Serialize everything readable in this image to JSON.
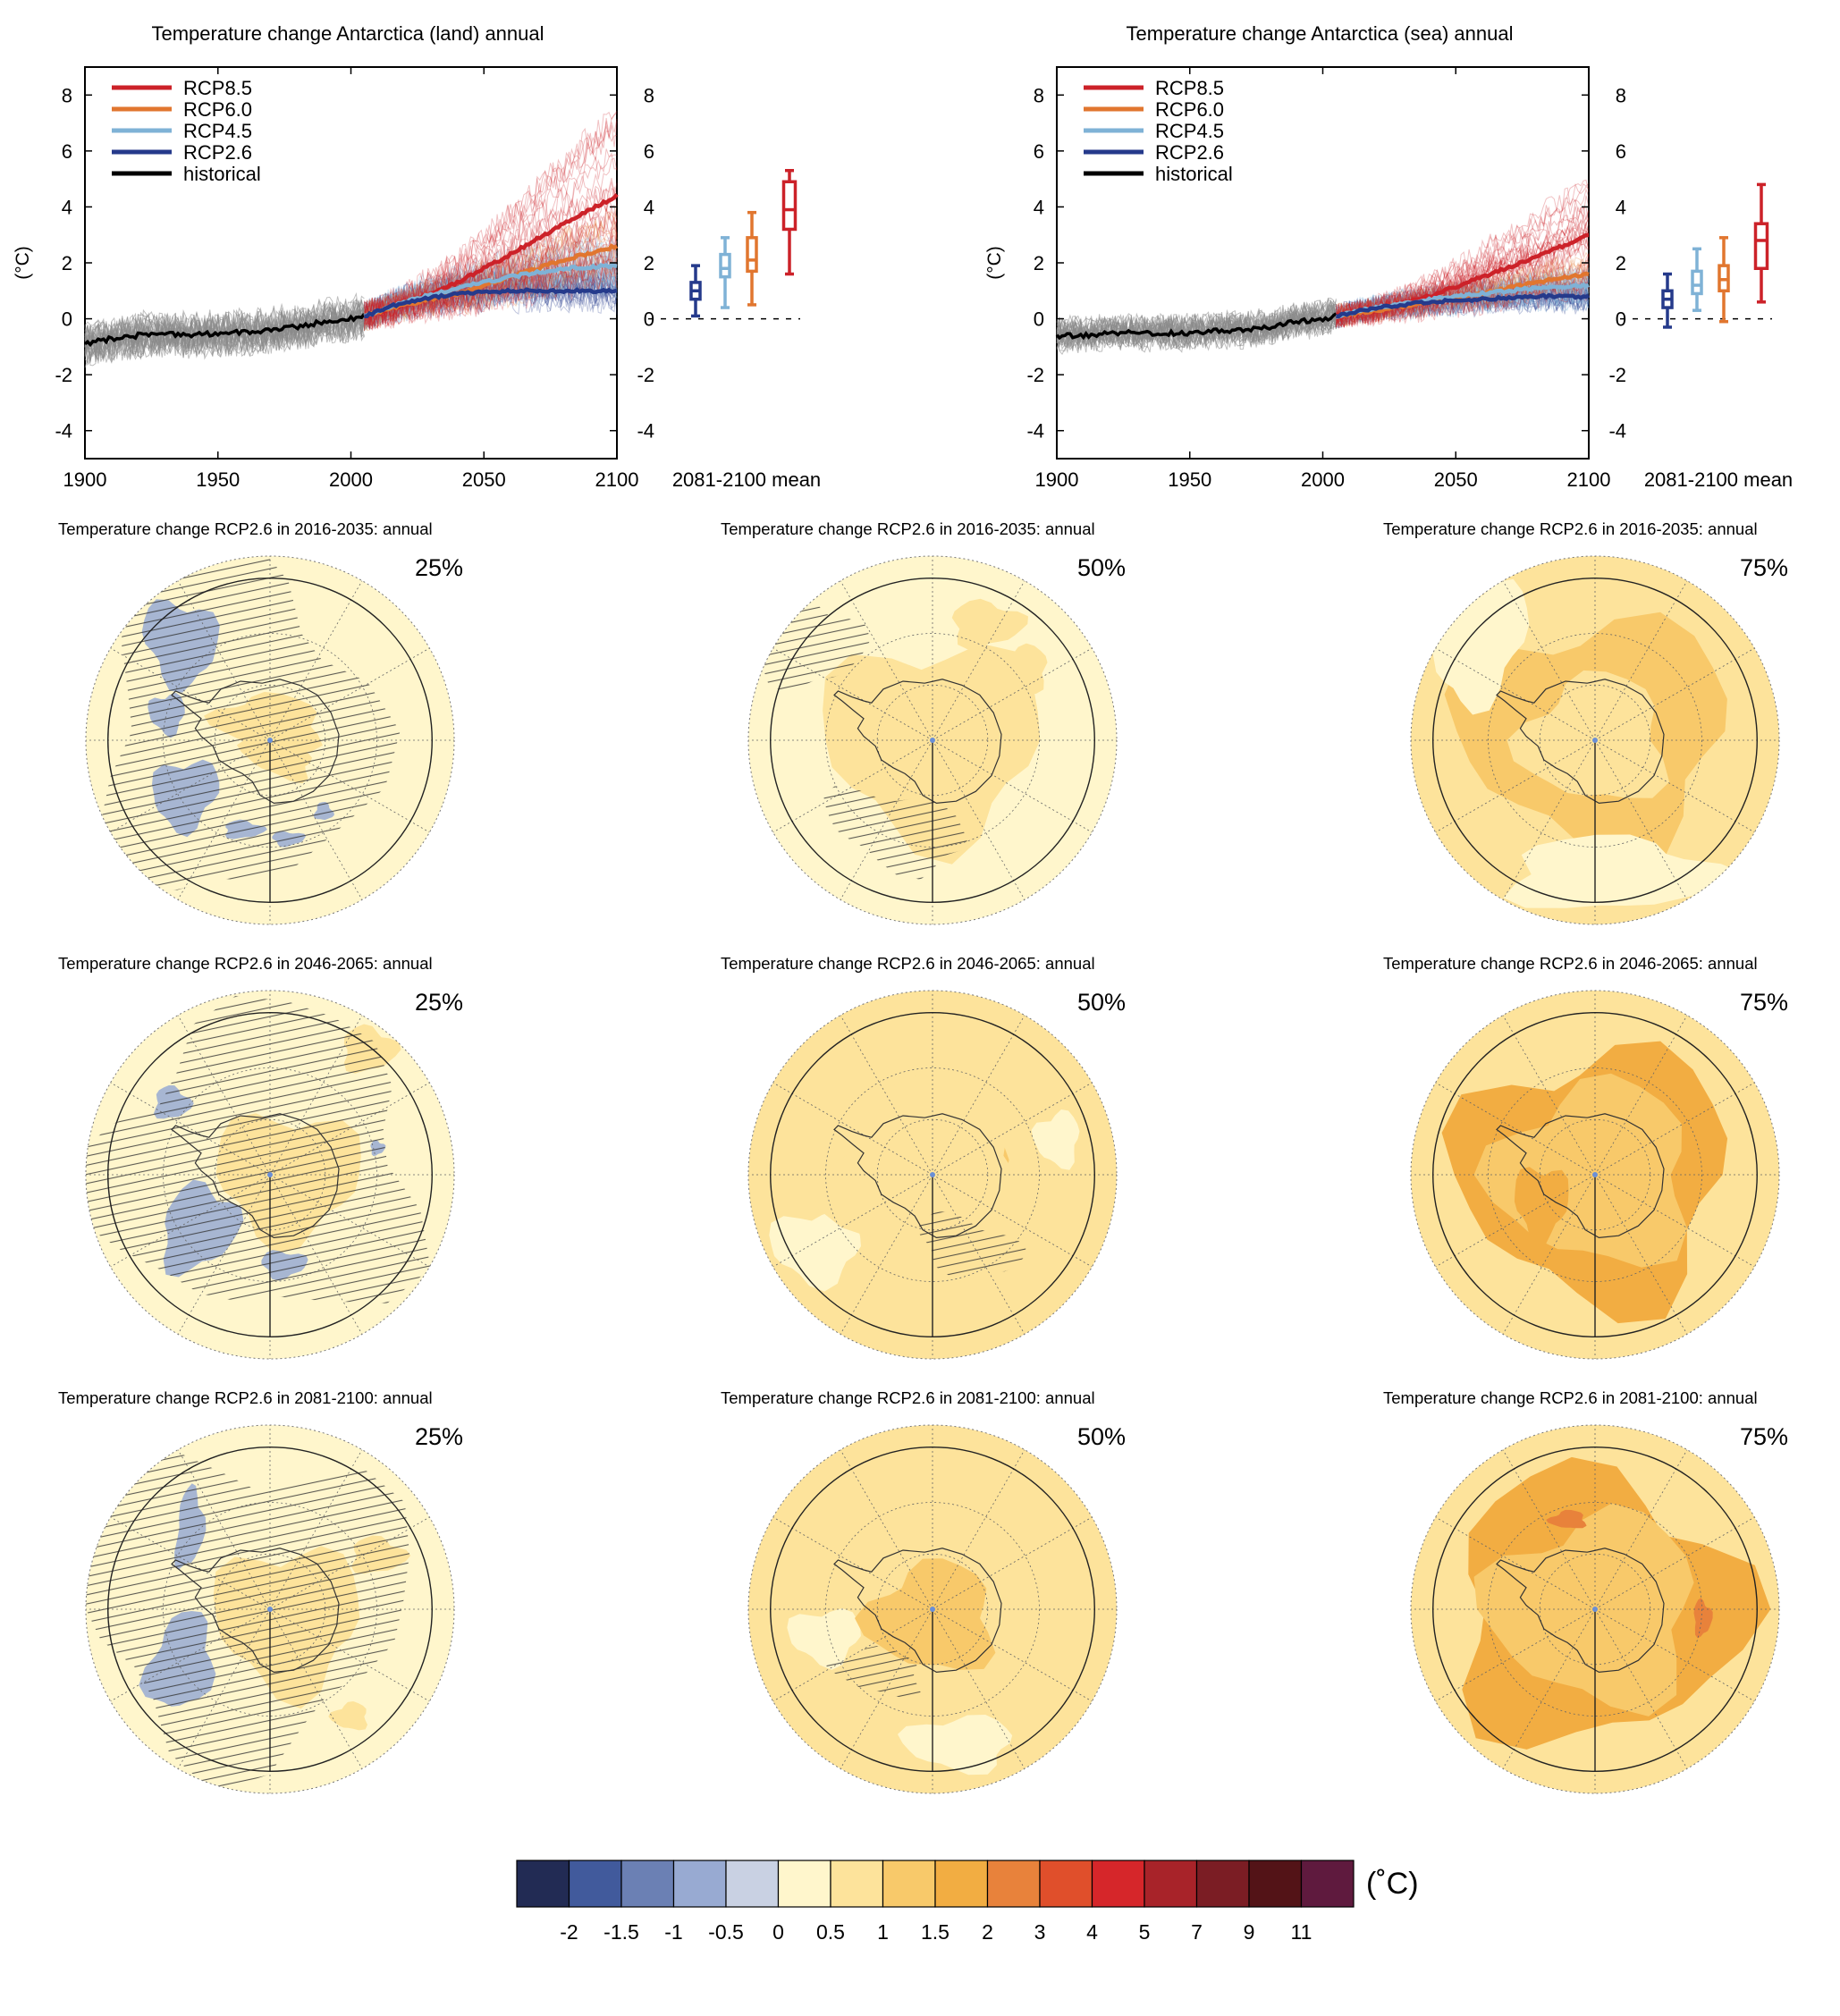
{
  "colors": {
    "rcp85": "#cc2229",
    "rcp60": "#e1762f",
    "rcp45": "#7fb2d6",
    "rcp26": "#253a8b",
    "historical": "#000000",
    "ensemble_hist": "#8a8a8a"
  },
  "ts_panels": [
    {
      "title": "Temperature change Antarctica (land) annual",
      "ylabel": "(°C)",
      "box_label": "2081-2100 mean",
      "x_ticks": [
        "1900",
        "1950",
        "2000",
        "2050",
        "2100"
      ],
      "y_ticks": [
        "-4",
        "-2",
        "0",
        "2",
        "4",
        "6",
        "8"
      ],
      "legend": [
        "RCP8.5",
        "RCP6.0",
        "RCP4.5",
        "RCP2.6",
        "historical"
      ]
    },
    {
      "title": "Temperature change Antarctica (sea) annual",
      "ylabel": "(°C)",
      "box_label": "2081-2100 mean",
      "x_ticks": [
        "1900",
        "1950",
        "2000",
        "2050",
        "2100"
      ],
      "y_ticks": [
        "-4",
        "-2",
        "0",
        "2",
        "4",
        "6",
        "8"
      ],
      "legend": [
        "RCP8.5",
        "RCP6.0",
        "RCP4.5",
        "RCP2.6",
        "historical"
      ]
    }
  ],
  "maps": [
    {
      "title": "Temperature change RCP2.6 in 2016-2035: annual",
      "pct": "25%"
    },
    {
      "title": "Temperature change RCP2.6 in 2016-2035: annual",
      "pct": "50%"
    },
    {
      "title": "Temperature change RCP2.6 in 2016-2035: annual",
      "pct": "75%"
    },
    {
      "title": "Temperature change RCP2.6 in 2046-2065: annual",
      "pct": "25%"
    },
    {
      "title": "Temperature change RCP2.6 in 2046-2065: annual",
      "pct": "50%"
    },
    {
      "title": "Temperature change RCP2.6 in 2046-2065: annual",
      "pct": "75%"
    },
    {
      "title": "Temperature change RCP2.6 in 2081-2100: annual",
      "pct": "25%"
    },
    {
      "title": "Temperature change RCP2.6 in 2081-2100: annual",
      "pct": "50%"
    },
    {
      "title": "Temperature change RCP2.6 in 2081-2100: annual",
      "pct": "75%"
    }
  ],
  "colorbar": {
    "unit": "(˚C)",
    "labels": [
      "-2",
      "-1.5",
      "-1",
      "-0.5",
      "0",
      "0.5",
      "1",
      "1.5",
      "2",
      "3",
      "4",
      "5",
      "7",
      "9",
      "11"
    ],
    "colors": [
      "#222b54",
      "#415a9c",
      "#6b80b4",
      "#98aad2",
      "#c9d1e3",
      "#fff6cc",
      "#fde39b",
      "#f8c96a",
      "#f2ad42",
      "#e8823b",
      "#e04f2b",
      "#d6262a",
      "#a82329",
      "#7b1d24",
      "#531317",
      "#5f1a3e"
    ]
  },
  "chart_data": [
    {
      "type": "line",
      "title": "Temperature change Antarctica (land) annual",
      "xlabel": "",
      "ylabel": "(°C)",
      "xlim": [
        1900,
        2100
      ],
      "ylim": [
        -5,
        9
      ],
      "grid": false,
      "legend_position": "top-left",
      "series": [
        {
          "name": "historical",
          "x": [
            1900,
            1910,
            1920,
            1930,
            1940,
            1950,
            1960,
            1970,
            1980,
            1990,
            2000,
            2005
          ],
          "values": [
            -0.9,
            -0.7,
            -0.6,
            -0.5,
            -0.6,
            -0.5,
            -0.5,
            -0.4,
            -0.3,
            -0.1,
            0.0,
            0.1
          ]
        },
        {
          "name": "RCP8.5",
          "x": [
            2005,
            2020,
            2040,
            2060,
            2080,
            2100
          ],
          "values": [
            0.1,
            0.5,
            1.3,
            2.3,
            3.4,
            4.4
          ]
        },
        {
          "name": "RCP6.0",
          "x": [
            2005,
            2020,
            2040,
            2060,
            2080,
            2100
          ],
          "values": [
            0.1,
            0.5,
            0.9,
            1.5,
            2.1,
            2.6
          ]
        },
        {
          "name": "RCP4.5",
          "x": [
            2005,
            2020,
            2040,
            2060,
            2080,
            2100
          ],
          "values": [
            0.1,
            0.6,
            1.1,
            1.5,
            1.8,
            1.9
          ]
        },
        {
          "name": "RCP2.6",
          "x": [
            2005,
            2020,
            2040,
            2060,
            2080,
            2100
          ],
          "values": [
            0.1,
            0.6,
            0.9,
            1.0,
            1.0,
            1.0
          ]
        }
      ],
      "boxes_2081_2100_mean": [
        {
          "name": "RCP2.6",
          "min": 0.1,
          "q1": 0.7,
          "median": 1.0,
          "q3": 1.3,
          "max": 1.9
        },
        {
          "name": "RCP4.5",
          "min": 0.4,
          "q1": 1.5,
          "median": 1.8,
          "q3": 2.3,
          "max": 2.9
        },
        {
          "name": "RCP6.0",
          "min": 0.5,
          "q1": 1.7,
          "median": 2.1,
          "q3": 2.9,
          "max": 3.8
        },
        {
          "name": "RCP8.5",
          "min": 1.6,
          "q1": 3.2,
          "median": 3.9,
          "q3": 4.9,
          "max": 5.3
        }
      ]
    },
    {
      "type": "line",
      "title": "Temperature change Antarctica (sea) annual",
      "xlabel": "",
      "ylabel": "(°C)",
      "xlim": [
        1900,
        2100
      ],
      "ylim": [
        -5,
        9
      ],
      "grid": false,
      "legend_position": "top-left",
      "series": [
        {
          "name": "historical",
          "x": [
            1900,
            1910,
            1920,
            1930,
            1940,
            1950,
            1960,
            1970,
            1980,
            1990,
            2000,
            2005
          ],
          "values": [
            -0.6,
            -0.6,
            -0.5,
            -0.5,
            -0.5,
            -0.5,
            -0.4,
            -0.4,
            -0.3,
            -0.1,
            0.0,
            0.1
          ]
        },
        {
          "name": "RCP8.5",
          "x": [
            2005,
            2020,
            2040,
            2060,
            2080,
            2100
          ],
          "values": [
            0.1,
            0.3,
            0.8,
            1.5,
            2.2,
            3.0
          ]
        },
        {
          "name": "RCP6.0",
          "x": [
            2005,
            2020,
            2040,
            2060,
            2080,
            2100
          ],
          "values": [
            0.1,
            0.3,
            0.6,
            0.9,
            1.3,
            1.6
          ]
        },
        {
          "name": "RCP4.5",
          "x": [
            2005,
            2020,
            2040,
            2060,
            2080,
            2100
          ],
          "values": [
            0.1,
            0.4,
            0.7,
            0.9,
            1.1,
            1.2
          ]
        },
        {
          "name": "RCP2.6",
          "x": [
            2005,
            2020,
            2040,
            2060,
            2080,
            2100
          ],
          "values": [
            0.1,
            0.4,
            0.6,
            0.7,
            0.8,
            0.8
          ]
        }
      ],
      "boxes_2081_2100_mean": [
        {
          "name": "RCP2.6",
          "min": -0.3,
          "q1": 0.4,
          "median": 0.7,
          "q3": 1.0,
          "max": 1.6
        },
        {
          "name": "RCP4.5",
          "min": 0.3,
          "q1": 0.9,
          "median": 1.2,
          "q3": 1.7,
          "max": 2.5
        },
        {
          "name": "RCP6.0",
          "min": -0.1,
          "q1": 1.0,
          "median": 1.4,
          "q3": 1.9,
          "max": 2.9
        },
        {
          "name": "RCP8.5",
          "min": 0.6,
          "q1": 1.8,
          "median": 2.8,
          "q3": 3.4,
          "max": 4.8
        }
      ]
    },
    {
      "type": "heatmap",
      "title": "Temperature change RCP2.6",
      "colorbar_levels": [
        -2,
        -1.5,
        -1,
        -0.5,
        0,
        0.5,
        1,
        1.5,
        2,
        3,
        4,
        5,
        7,
        9,
        11
      ],
      "panels": [
        {
          "period": "2016-2035",
          "percentile": "25%",
          "dominant_range": "0 to 0.5",
          "negative_areas": true,
          "hatched": true
        },
        {
          "period": "2016-2035",
          "percentile": "50%",
          "dominant_range": "0 to 1",
          "negative_areas": false,
          "hatched": true
        },
        {
          "period": "2016-2035",
          "percentile": "75%",
          "dominant_range": "0.5 to 1.5",
          "negative_areas": false,
          "hatched": false
        },
        {
          "period": "2046-2065",
          "percentile": "25%",
          "dominant_range": "0 to 0.5",
          "negative_areas": true,
          "hatched": true
        },
        {
          "period": "2046-2065",
          "percentile": "50%",
          "dominant_range": "0.5 to 1",
          "negative_areas": false,
          "hatched": true
        },
        {
          "period": "2046-2065",
          "percentile": "75%",
          "dominant_range": "0.5 to 2",
          "negative_areas": false,
          "hatched": false
        },
        {
          "period": "2081-2100",
          "percentile": "25%",
          "dominant_range": "0 to 0.5",
          "negative_areas": true,
          "hatched": true
        },
        {
          "period": "2081-2100",
          "percentile": "50%",
          "dominant_range": "0.5 to 1",
          "negative_areas": false,
          "hatched": true
        },
        {
          "period": "2081-2100",
          "percentile": "75%",
          "dominant_range": "0.5 to 3",
          "negative_areas": false,
          "hatched": false
        }
      ]
    }
  ]
}
